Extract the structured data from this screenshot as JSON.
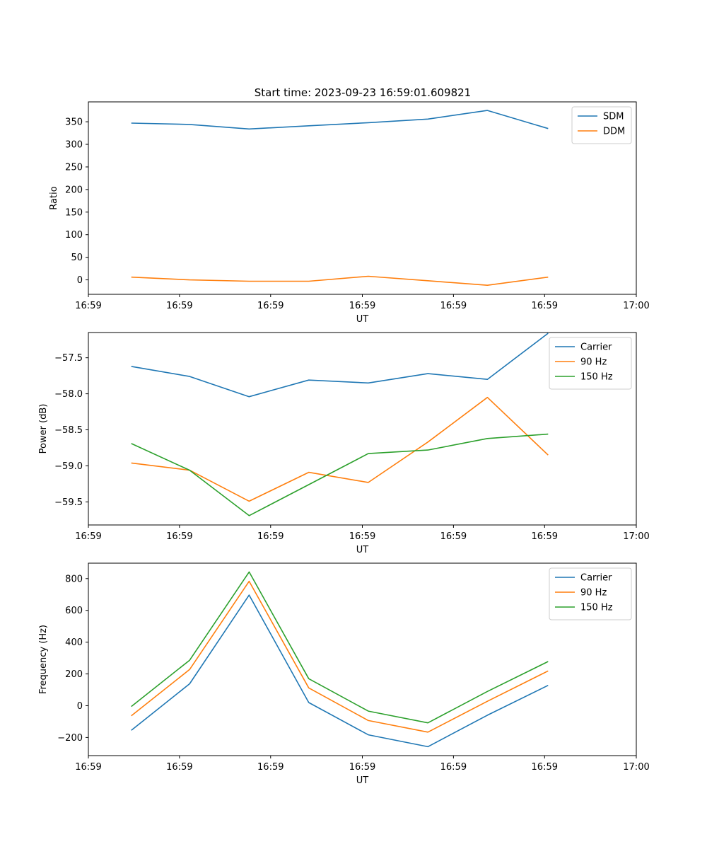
{
  "figure": {
    "title": "Start time: 2023-09-23 16:59:01.609821"
  },
  "colors": {
    "blue": "#1f77b4",
    "orange": "#ff7f0e",
    "green": "#2ca02c"
  },
  "chart_data": [
    {
      "type": "line",
      "title": "Start time: 2023-09-23 16:59:01.609821",
      "xlabel": "UT",
      "ylabel": "Ratio",
      "xlim": [
        0,
        9.2
      ],
      "x_tick_positions": [
        0,
        1.53,
        3.06,
        4.6,
        6.13,
        7.66,
        9.2
      ],
      "x_tick_labels": [
        "16:59",
        "16:59",
        "16:59",
        "16:59",
        "16:59",
        "16:59",
        "17:00"
      ],
      "ylim": [
        -32,
        394
      ],
      "y_ticks": [
        0,
        50,
        100,
        150,
        200,
        250,
        300,
        350
      ],
      "y_tick_labels": [
        "0",
        "50",
        "100",
        "150",
        "200",
        "250",
        "300",
        "350"
      ],
      "legend_position": "top-right",
      "x": [
        0.72,
        1.7,
        2.7,
        3.7,
        4.7,
        5.7,
        6.7,
        7.72
      ],
      "series": [
        {
          "name": "SDM",
          "color": "blue",
          "values": [
            347,
            344,
            334,
            341,
            348,
            356,
            375,
            335
          ]
        },
        {
          "name": "DDM",
          "color": "orange",
          "values": [
            6,
            0,
            -3,
            -3,
            8,
            -2,
            -12,
            6
          ]
        }
      ]
    },
    {
      "type": "line",
      "title": "",
      "xlabel": "UT",
      "ylabel": "Power (dB)",
      "xlim": [
        0,
        9.2
      ],
      "x_tick_positions": [
        0,
        1.53,
        3.06,
        4.6,
        6.13,
        7.66,
        9.2
      ],
      "x_tick_labels": [
        "16:59",
        "16:59",
        "16:59",
        "16:59",
        "16:59",
        "16:59",
        "17:00"
      ],
      "ylim": [
        -59.82,
        -57.15
      ],
      "y_ticks": [
        -59.5,
        -59.0,
        -58.5,
        -58.0,
        -57.5
      ],
      "y_tick_labels": [
        "−59.5",
        "−59.0",
        "−58.5",
        "−58.0",
        "−57.5"
      ],
      "legend_position": "top-right",
      "x": [
        0.72,
        1.7,
        2.7,
        3.7,
        4.7,
        5.7,
        6.7,
        7.72
      ],
      "series": [
        {
          "name": "Carrier",
          "color": "blue",
          "values": [
            -57.62,
            -57.76,
            -58.04,
            -57.81,
            -57.85,
            -57.72,
            -57.8,
            -57.16
          ]
        },
        {
          "name": "90 Hz",
          "color": "orange",
          "values": [
            -58.96,
            -59.06,
            -59.49,
            -59.09,
            -59.23,
            -58.67,
            -58.05,
            -58.85
          ]
        },
        {
          "name": "150 Hz",
          "color": "green",
          "values": [
            -58.69,
            -59.06,
            -59.69,
            -59.26,
            -58.83,
            -58.78,
            -58.62,
            -58.56
          ]
        }
      ]
    },
    {
      "type": "line",
      "title": "",
      "xlabel": "UT",
      "ylabel": "Frequency (Hz)",
      "xlim": [
        0,
        9.2
      ],
      "x_tick_positions": [
        0,
        1.53,
        3.06,
        4.6,
        6.13,
        7.66,
        9.2
      ],
      "x_tick_labels": [
        "16:59",
        "16:59",
        "16:59",
        "16:59",
        "16:59",
        "16:59",
        "17:00"
      ],
      "ylim": [
        -314,
        897
      ],
      "y_ticks": [
        -200,
        0,
        200,
        400,
        600,
        800
      ],
      "y_tick_labels": [
        "−200",
        "0",
        "200",
        "400",
        "600",
        "800"
      ],
      "legend_position": "top-right",
      "x": [
        0.72,
        1.7,
        2.7,
        3.7,
        4.7,
        5.7,
        6.7,
        7.72
      ],
      "series": [
        {
          "name": "Carrier",
          "color": "blue",
          "values": [
            -155,
            138,
            696,
            20,
            -183,
            -258,
            -60,
            128
          ]
        },
        {
          "name": "90 Hz",
          "color": "orange",
          "values": [
            -64,
            228,
            783,
            112,
            -93,
            -166,
            28,
            219
          ]
        },
        {
          "name": "150 Hz",
          "color": "green",
          "values": [
            -5,
            286,
            842,
            170,
            -34,
            -108,
            90,
            278
          ]
        }
      ]
    }
  ]
}
